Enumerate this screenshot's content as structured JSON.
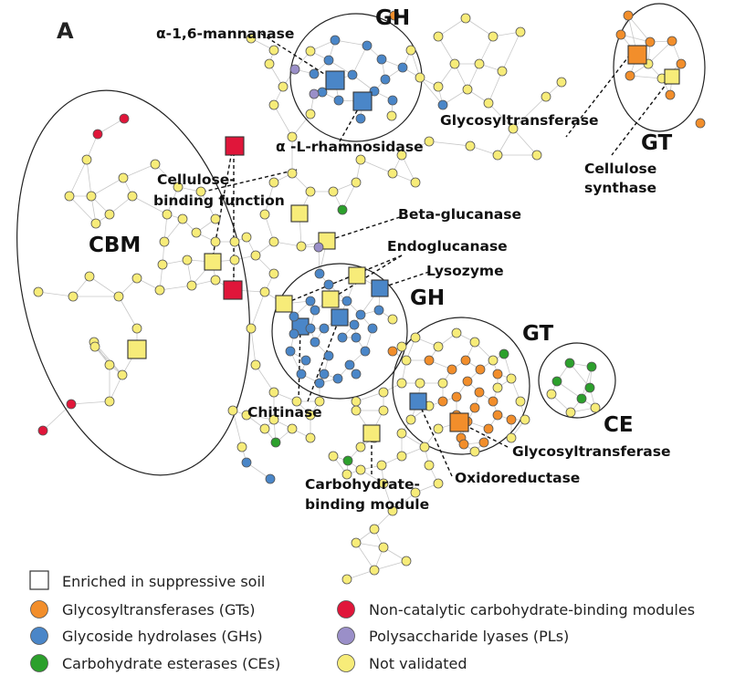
{
  "panel_label": "A",
  "colors": {
    "GT": "#f28e2b",
    "GH": "#4a86c8",
    "CE": "#2ca02c",
    "CBM": "#e0163a",
    "PL": "#9a8fc8",
    "NV": "#f7ec79"
  },
  "cluster_labels": {
    "gh_top": "GH",
    "gh_mid": "GH",
    "gt_top": "GT",
    "gt_mid": "GT",
    "cbm": "CBM",
    "ce": "CE"
  },
  "annotations": {
    "mannanase": "α-1,6-mannanase",
    "rhamnosidase": "α -L-rhamnosidase",
    "glycosyltransferase_top": "Glycosyltransferase",
    "cellulose_synthase_1": "Cellulose",
    "cellulose_synthase_2": "synthase",
    "cellulose_binding_1": "Cellulose-",
    "cellulose_binding_2": "binding function",
    "beta_glucanase": "Beta-glucanase",
    "endoglucanase": "Endoglucanase",
    "lysozyme": "Lysozyme",
    "chitinase": "Chitinase",
    "glycosyltransferase_bottom": "Glycosyltransferase",
    "oxidoreductase": "Oxidoreductase",
    "carb_binding_1": "Carbohydrate-",
    "carb_binding_2": "binding module"
  },
  "legend": {
    "enriched": "Enriched in suppressive soil",
    "items": [
      {
        "label": "Glycosyltransferases (GTs)",
        "color_key": "GT"
      },
      {
        "label": "Glycoside hydrolases (GHs)",
        "color_key": "GH"
      },
      {
        "label": "Carbohydrate esterases (CEs)",
        "color_key": "CE"
      },
      {
        "label": "Non-catalytic carbohydrate-binding modules",
        "color_key": "CBM"
      },
      {
        "label": "Polysaccharide lyases (PLs)",
        "color_key": "PL"
      },
      {
        "label": "Not validated",
        "color_key": "NV"
      }
    ]
  }
}
